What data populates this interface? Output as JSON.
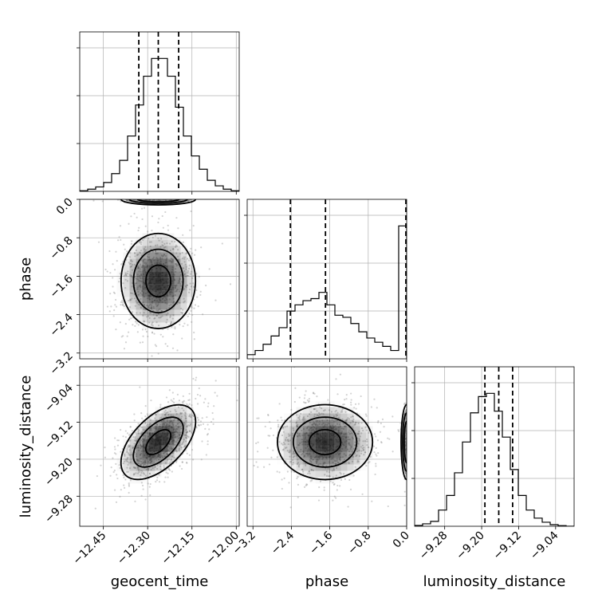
{
  "chart_data": {
    "type": "corner",
    "parameters": [
      "geocent_time",
      "phase",
      "luminosity_distance"
    ],
    "ranges": {
      "geocent_time": [
        -12.53,
        -11.99
      ],
      "phase": [
        -3.32,
        0.0
      ],
      "luminosity_distance": [
        -9.345,
        -9.0
      ]
    },
    "ticks": {
      "geocent_time": [
        -12.45,
        -12.3,
        -12.15,
        -12.0
      ],
      "phase": [
        -3.2,
        -2.4,
        -1.6,
        -0.8,
        0.0
      ],
      "luminosity_distance": [
        -9.28,
        -9.2,
        -9.12,
        -9.04
      ]
    },
    "tick_labels": {
      "geocent_time": [
        "−12.45",
        "−12.30",
        "−12.15",
        "−12.00"
      ],
      "phase": [
        "−3.2",
        "−2.4",
        "−1.6",
        "−0.8",
        "0.0"
      ],
      "luminosity_distance": [
        "−9.28",
        "−9.20",
        "−9.12",
        "−9.04"
      ]
    },
    "quantiles": {
      "geocent_time": [
        -12.33,
        -12.264,
        -12.195
      ],
      "phase": [
        -2.42,
        -1.69,
        0.0
      ],
      "luminosity_distance": [
        -9.193,
        -9.163,
        -9.133
      ]
    },
    "histograms": {
      "geocent_time": {
        "edges": [
          -12.53,
          -12.503,
          -12.476,
          -12.449,
          -12.422,
          -12.395,
          -12.368,
          -12.341,
          -12.314,
          -12.287,
          -12.26,
          -12.233,
          -12.206,
          -12.179,
          -12.152,
          -12.125,
          -12.098,
          -12.071,
          -12.044,
          -12.017,
          -11.99
        ],
        "counts": [
          0.3,
          1,
          2,
          4,
          8,
          14,
          25,
          39,
          52,
          60,
          60,
          52,
          38,
          25,
          16,
          10,
          5,
          2.5,
          1,
          0.3
        ]
      },
      "phase": {
        "edges": [
          -3.32,
          -3.154,
          -2.988,
          -2.822,
          -2.656,
          -2.49,
          -2.324,
          -2.158,
          -1.992,
          -1.826,
          -1.66,
          -1.494,
          -1.328,
          -1.162,
          -0.996,
          -0.83,
          -0.664,
          -0.498,
          -0.332,
          -0.166,
          0.0
        ],
        "counts": [
          2,
          4,
          7,
          11,
          15,
          23,
          26,
          28,
          29,
          32,
          26,
          21,
          20,
          17,
          13,
          10,
          8,
          6,
          4,
          64
        ]
      },
      "luminosity_distance": {
        "edges": [
          -9.345,
          -9.32775,
          -9.3105,
          -9.29325,
          -9.276,
          -9.25875,
          -9.2415,
          -9.22425,
          -9.207,
          -9.18975,
          -9.1725,
          -9.15525,
          -9.138,
          -9.12075,
          -9.1035,
          -9.08625,
          -9.069,
          -9.05175,
          -9.0345,
          -9.01725,
          -9.0
        ],
        "counts": [
          0.5,
          1.5,
          3,
          10,
          19,
          33,
          52,
          70,
          80,
          82,
          71,
          55,
          35,
          19,
          10,
          5,
          2.5,
          1,
          0.4,
          0
        ]
      }
    },
    "scatter_pairs": [
      {
        "x": "geocent_time",
        "y": "phase",
        "x_center": -12.264,
        "x_sd": 0.07,
        "y_center": -1.7,
        "y_sd": 0.55,
        "corr": 0.0
      },
      {
        "x": "geocent_time",
        "y": "luminosity_distance",
        "x_center": -12.264,
        "x_sd": 0.07,
        "y_center": -9.163,
        "y_sd": 0.045,
        "corr": 0.55
      },
      {
        "x": "phase",
        "y": "luminosity_distance",
        "x_center": -1.7,
        "x_sd": 0.55,
        "y_center": -9.163,
        "y_sd": 0.045,
        "corr": 0.0
      }
    ],
    "density_color": "#000000",
    "scatter_color": "#808080",
    "grid": true
  }
}
